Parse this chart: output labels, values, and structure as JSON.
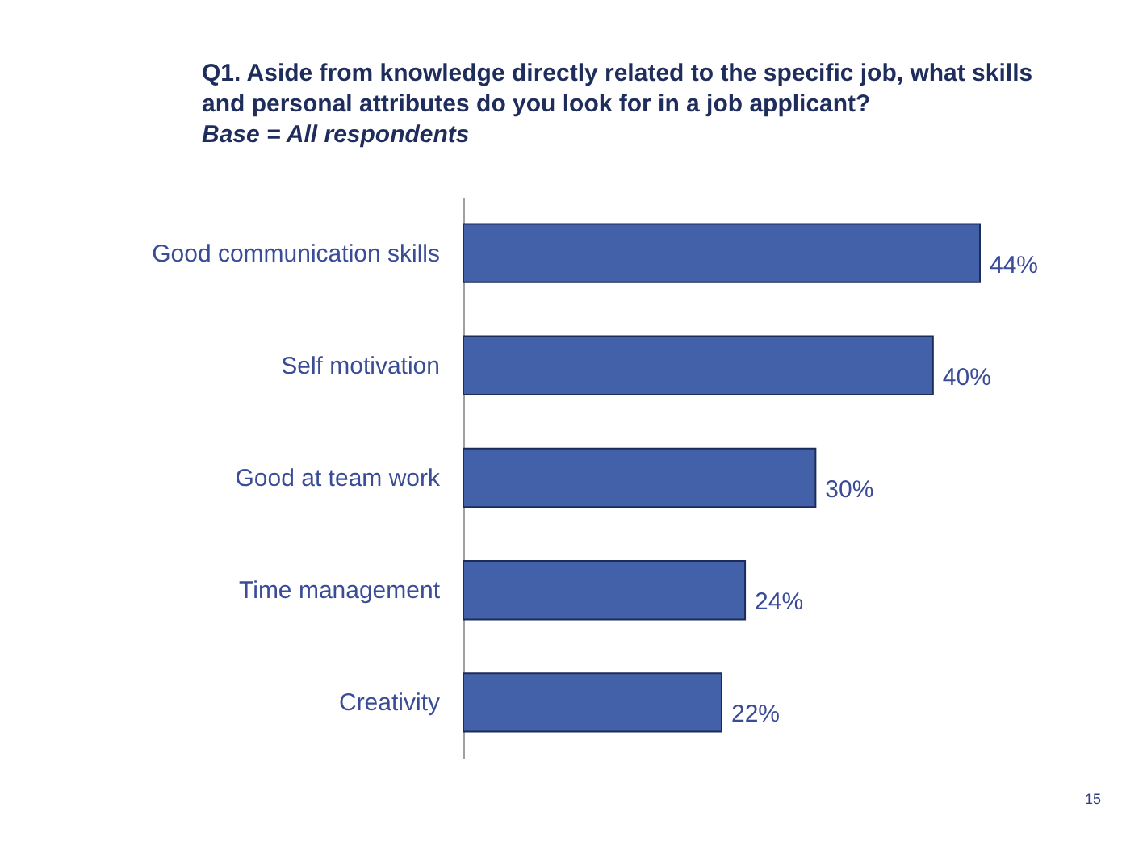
{
  "chart_data": {
    "type": "bar",
    "orientation": "horizontal",
    "title": "Q1.  Aside from knowledge directly related to the specific job, what skills and personal attributes do you look for in a job applicant?",
    "subtitle": "Base = All respondents",
    "categories": [
      "Good communication skills",
      "Self motivation",
      "Good at team work",
      "Time management",
      "Creativity"
    ],
    "values": [
      44,
      40,
      30,
      24,
      22
    ],
    "value_labels": [
      "44%",
      "40%",
      "30%",
      "24%",
      "22%"
    ],
    "color": "#4361a8",
    "annotations": [
      "15"
    ]
  }
}
